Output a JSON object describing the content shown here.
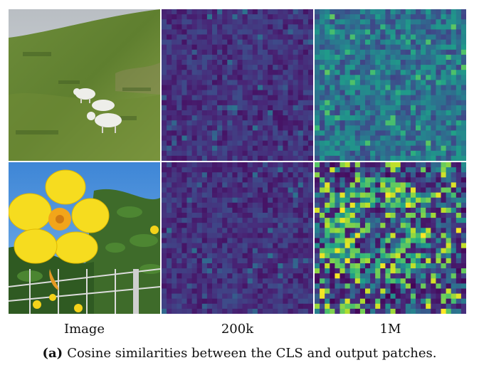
{
  "figure": {
    "column_labels": [
      "Image",
      "200k",
      "1M"
    ],
    "caption_tag": "(a)",
    "caption_text": "Cosine similarities between the CLS and output patches.",
    "rows": [
      {
        "image_subject": "sheep-on-grassy-hillside"
      },
      {
        "image_subject": "yellow-flower-with-fence"
      }
    ],
    "colormap": "viridis",
    "heatmap_grid": 30
  }
}
